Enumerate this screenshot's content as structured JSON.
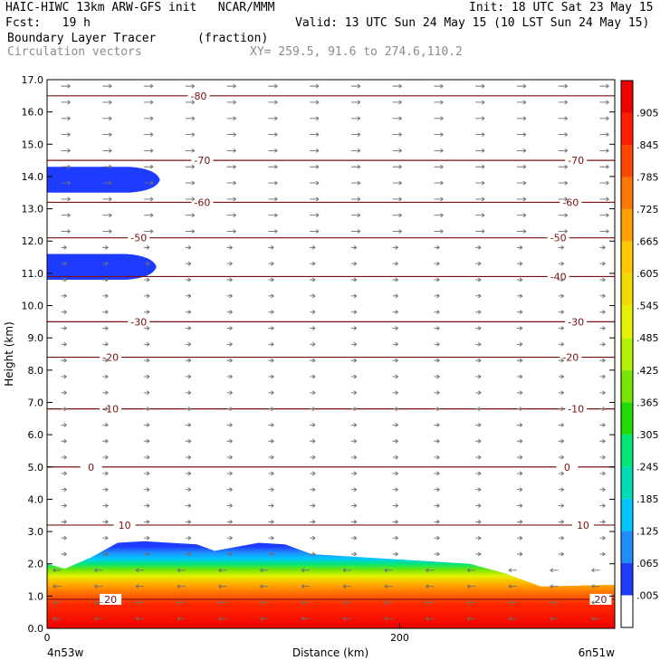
{
  "header": {
    "line1_left": "HAIC-HIWC 13km ARW-GFS init   NCAR/MMM",
    "line1_right": "Init: 18 UTC Sat 23 May 15",
    "line2_left": "Fcst:   19 h",
    "line2_right": "Valid: 13 UTC Sun 24 May 15 (10 LST Sun 24 May 15)",
    "field_name": "Boundary Layer Tracer",
    "field_unit": "(fraction)",
    "vector_label": "Circulation vectors",
    "xy_label": "XY= 259.5, 91.6 to 274.6,110.2"
  },
  "chart_data": {
    "type": "heatmap",
    "ylabel": "Height (km)",
    "xlabel": "Distance (km)",
    "x_start_label": "4n53w",
    "x_end_label": "6n51w",
    "xlim": [
      0,
      322
    ],
    "ylim": [
      0,
      17
    ],
    "x_ticks": [
      0,
      200
    ],
    "y_ticks": [
      "0.0",
      "1.0",
      "2.0",
      "3.0",
      "4.0",
      "5.0",
      "6.0",
      "7.0",
      "8.0",
      "9.0",
      "10.0",
      "11.0",
      "12.0",
      "13.0",
      "14.0",
      "15.0",
      "16.0",
      "17.0"
    ],
    "colorbar_labels": [
      ".005",
      ".065",
      ".125",
      ".185",
      ".245",
      ".305",
      ".365",
      ".425",
      ".485",
      ".545",
      ".605",
      ".665",
      ".725",
      ".785",
      ".845",
      ".905"
    ],
    "colorbar_colors": [
      "#ffffff",
      "#1e3cff",
      "#1f8cff",
      "#00c8ff",
      "#00dcb4",
      "#00e678",
      "#1edc00",
      "#78e600",
      "#b4f000",
      "#e6f000",
      "#f0dc00",
      "#ffc800",
      "#ffa000",
      "#ff7800",
      "#ff4600",
      "#ff1e00",
      "#f00000"
    ],
    "isotherms": [
      {
        "label": "20",
        "y": 0.9,
        "label_x": [
          36,
          314
        ]
      },
      {
        "label": "10",
        "y": 3.2,
        "label_x": [
          44,
          304
        ]
      },
      {
        "label": "0",
        "y": 5.0,
        "label_x": [
          25,
          295
        ]
      },
      {
        "label": "-10",
        "y": 6.8,
        "label_x": [
          36,
          300
        ]
      },
      {
        "label": "-20",
        "y": 8.4,
        "label_x": [
          36,
          297
        ]
      },
      {
        "label": "-30",
        "y": 9.5,
        "label_x": [
          52,
          300
        ]
      },
      {
        "label": "-40",
        "y": 10.9,
        "label_x": [
          290
        ]
      },
      {
        "label": "-50",
        "y": 12.1,
        "label_x": [
          52,
          290
        ]
      },
      {
        "label": "-60",
        "y": 13.2,
        "label_x": [
          88,
          297
        ]
      },
      {
        "label": "-70",
        "y": 14.5,
        "label_x": [
          88,
          300
        ]
      },
      {
        "label": "-80",
        "y": 16.5,
        "label_x": [
          86
        ]
      }
    ],
    "pbl_top_km": [
      {
        "x": 0,
        "y": 2.0
      },
      {
        "x": 10,
        "y": 1.85
      },
      {
        "x": 25,
        "y": 2.2
      },
      {
        "x": 40,
        "y": 2.65
      },
      {
        "x": 55,
        "y": 2.7
      },
      {
        "x": 70,
        "y": 2.65
      },
      {
        "x": 85,
        "y": 2.6
      },
      {
        "x": 95,
        "y": 2.4
      },
      {
        "x": 105,
        "y": 2.5
      },
      {
        "x": 120,
        "y": 2.65
      },
      {
        "x": 135,
        "y": 2.6
      },
      {
        "x": 150,
        "y": 2.3
      },
      {
        "x": 180,
        "y": 2.2
      },
      {
        "x": 210,
        "y": 2.1
      },
      {
        "x": 240,
        "y": 2.0
      },
      {
        "x": 260,
        "y": 1.7
      },
      {
        "x": 280,
        "y": 1.3
      },
      {
        "x": 322,
        "y": 1.35
      }
    ],
    "upper_tracer_layers": [
      {
        "y_bottom": 13.5,
        "y_top": 14.3,
        "x_end": 62
      },
      {
        "y_bottom": 10.8,
        "y_top": 11.6,
        "x_end": 60
      }
    ]
  }
}
